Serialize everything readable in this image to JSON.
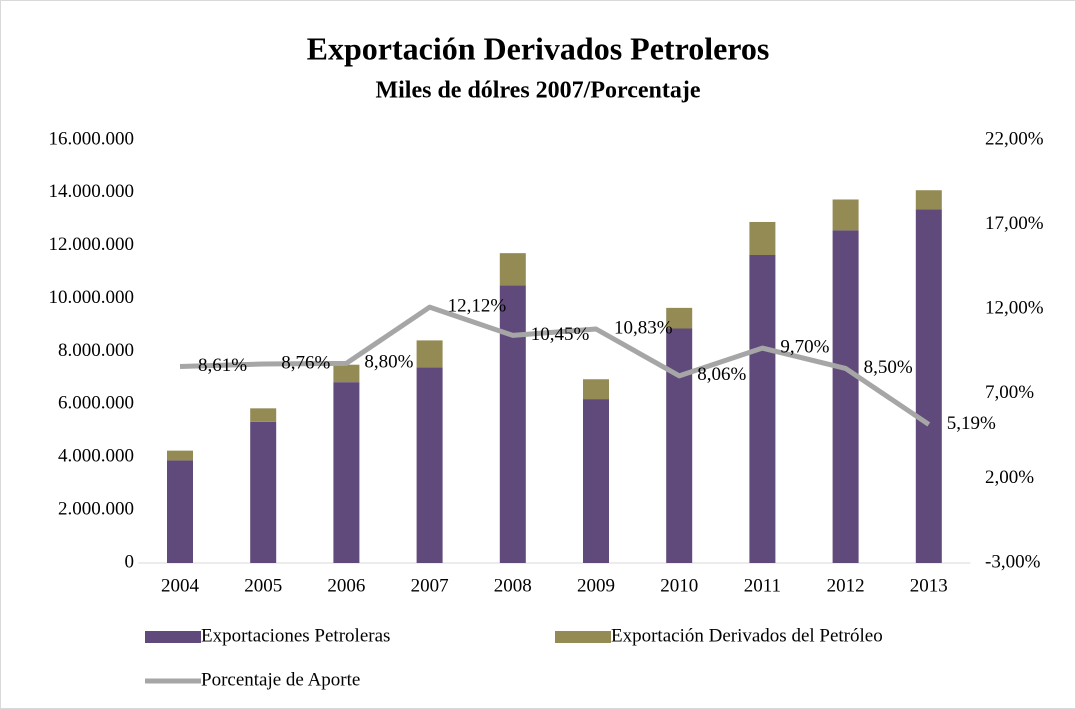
{
  "chart_data": {
    "type": "bar",
    "stacked": true,
    "title": "Exportación Derivados Petroleros",
    "subtitle": "Miles de dólres 2007/Porcentaje",
    "categories": [
      "2004",
      "2005",
      "2006",
      "2007",
      "2008",
      "2009",
      "2010",
      "2011",
      "2012",
      "2013"
    ],
    "series": [
      {
        "name": "Exportaciones Petroleras",
        "type": "bar",
        "color": "#604a7b",
        "values": [
          3880000,
          5340000,
          6840000,
          7400000,
          10500000,
          6200000,
          8870000,
          11650000,
          12580000,
          13370000
        ]
      },
      {
        "name": "Exportación Derivados del Petróleo",
        "type": "bar",
        "color": "#948a54",
        "values": [
          370000,
          510000,
          660000,
          1020000,
          1220000,
          750000,
          780000,
          1250000,
          1170000,
          730000
        ]
      },
      {
        "name": "Porcentaje de Aporte",
        "type": "line",
        "axis": "y2",
        "color": "#a6a6a6",
        "values": [
          8.61,
          8.76,
          8.8,
          12.12,
          10.45,
          10.83,
          8.06,
          9.7,
          8.5,
          5.19
        ],
        "value_labels": [
          "8,61%",
          "8,76%",
          "8,80%",
          "12,12%",
          "10,45%",
          "10,83%",
          "8,06%",
          "9,70%",
          "8,50%",
          "5,19%"
        ]
      }
    ],
    "ylim": [
      0,
      16000000
    ],
    "yticks": [
      0,
      {
        "value": 2000000,
        "label": "2.000.000"
      },
      {
        "value": 4000000,
        "label": "4.000.000"
      },
      {
        "value": 6000000,
        "label": "6.000.000"
      },
      {
        "value": 8000000,
        "label": "8.000.000"
      },
      {
        "value": 10000000,
        "label": "10.000.000"
      },
      {
        "value": 12000000,
        "label": "12.000.000"
      },
      {
        "value": 14000000,
        "label": "14.000.000"
      },
      {
        "value": 16000000,
        "label": "16.000.000"
      }
    ],
    "y2lim": [
      -3,
      22
    ],
    "y2ticks": [
      {
        "value": -3,
        "label": "-3,00%"
      },
      {
        "value": 2,
        "label": "2,00%"
      },
      {
        "value": 7,
        "label": "7,00%"
      },
      {
        "value": 12,
        "label": "12,00%"
      },
      {
        "value": 17,
        "label": "17,00%"
      },
      {
        "value": 22,
        "label": "22,00%"
      }
    ],
    "grid": false,
    "legend": "bottom"
  }
}
